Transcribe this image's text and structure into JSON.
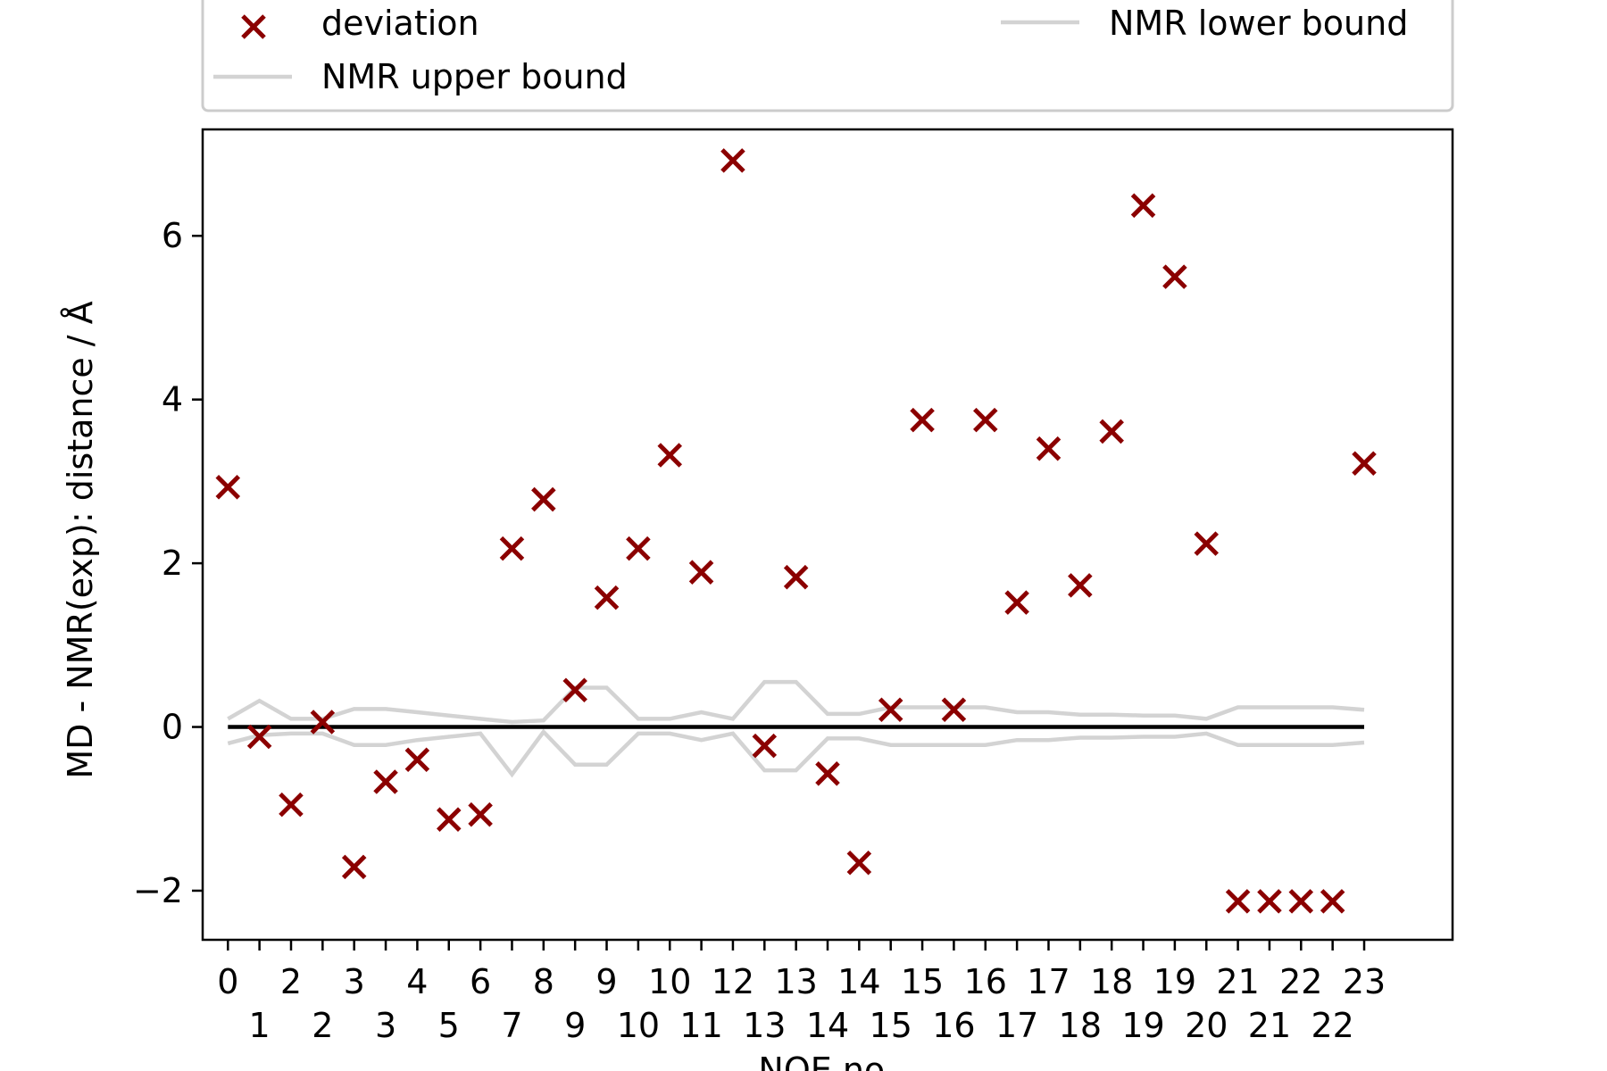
{
  "chart_data": {
    "type": "scatter",
    "xlabel": "NOE no.",
    "ylabel": "MD - NMR(exp): distance / Å",
    "ylim": [
      -2.6,
      7.3
    ],
    "xlim": [
      -0.8,
      38.8
    ],
    "grid": false,
    "legend": {
      "placement": "top",
      "entries": [
        "deviation",
        "NMR upper bound",
        "NMR lower bound"
      ]
    },
    "x": [
      0,
      1,
      2,
      3,
      4,
      5,
      6,
      7,
      8,
      9,
      10,
      11,
      12,
      13,
      14,
      15,
      16,
      17,
      18,
      19,
      20,
      21,
      22,
      23,
      24,
      25,
      26,
      27,
      28,
      29,
      30,
      31,
      32,
      33,
      34,
      35,
      36
    ],
    "tick_labels": [
      "0",
      "1",
      "2",
      "2",
      "3",
      "3",
      "4",
      "5",
      "6",
      "7",
      "8",
      "9",
      "9",
      "10",
      "10",
      "11",
      "12",
      "13",
      "13",
      "14",
      "14",
      "15",
      "15",
      "16",
      "16",
      "17",
      "17",
      "18",
      "18",
      "19",
      "19",
      "20",
      "21",
      "21",
      "22",
      "22",
      "23"
    ],
    "series": [
      {
        "name": "deviation",
        "marker": "x",
        "color": "#8b0000",
        "values": [
          2.93,
          -0.12,
          -0.95,
          0.06,
          -1.71,
          -0.67,
          -0.4,
          -1.13,
          -1.07,
          2.18,
          2.78,
          0.45,
          1.58,
          2.18,
          3.32,
          1.89,
          6.92,
          -0.23,
          1.83,
          -0.57,
          -1.66,
          0.21,
          3.75,
          0.21,
          3.75,
          1.52,
          3.4,
          1.73,
          3.61,
          6.37,
          5.5,
          2.24,
          -2.13,
          -2.13,
          -2.13,
          -2.13,
          3.22
        ]
      },
      {
        "name": "NMR upper bound",
        "color": "#d3d3d3",
        "values": [
          0.1,
          0.32,
          0.1,
          0.1,
          0.22,
          0.22,
          0.18,
          0.14,
          0.1,
          0.06,
          0.08,
          0.48,
          0.48,
          0.1,
          0.1,
          0.18,
          0.1,
          0.55,
          0.55,
          0.16,
          0.16,
          0.24,
          0.24,
          0.24,
          0.24,
          0.18,
          0.18,
          0.15,
          0.15,
          0.14,
          0.14,
          0.1,
          0.24,
          0.24,
          0.24,
          0.24,
          0.21
        ]
      },
      {
        "name": "NMR lower bound",
        "color": "#d3d3d3",
        "values": [
          -0.2,
          -0.1,
          -0.08,
          -0.08,
          -0.22,
          -0.22,
          -0.16,
          -0.12,
          -0.08,
          -0.58,
          -0.06,
          -0.46,
          -0.46,
          -0.08,
          -0.08,
          -0.16,
          -0.08,
          -0.53,
          -0.53,
          -0.14,
          -0.14,
          -0.22,
          -0.22,
          -0.22,
          -0.22,
          -0.16,
          -0.16,
          -0.13,
          -0.13,
          -0.12,
          -0.12,
          -0.08,
          -0.22,
          -0.22,
          -0.22,
          -0.22,
          -0.19
        ]
      }
    ],
    "zero_line": {
      "color": "#000000",
      "value": 0
    },
    "yticks": [
      -2,
      0,
      2,
      4,
      6
    ],
    "ytick_labels": [
      "−2",
      "0",
      "2",
      "4",
      "6"
    ]
  }
}
